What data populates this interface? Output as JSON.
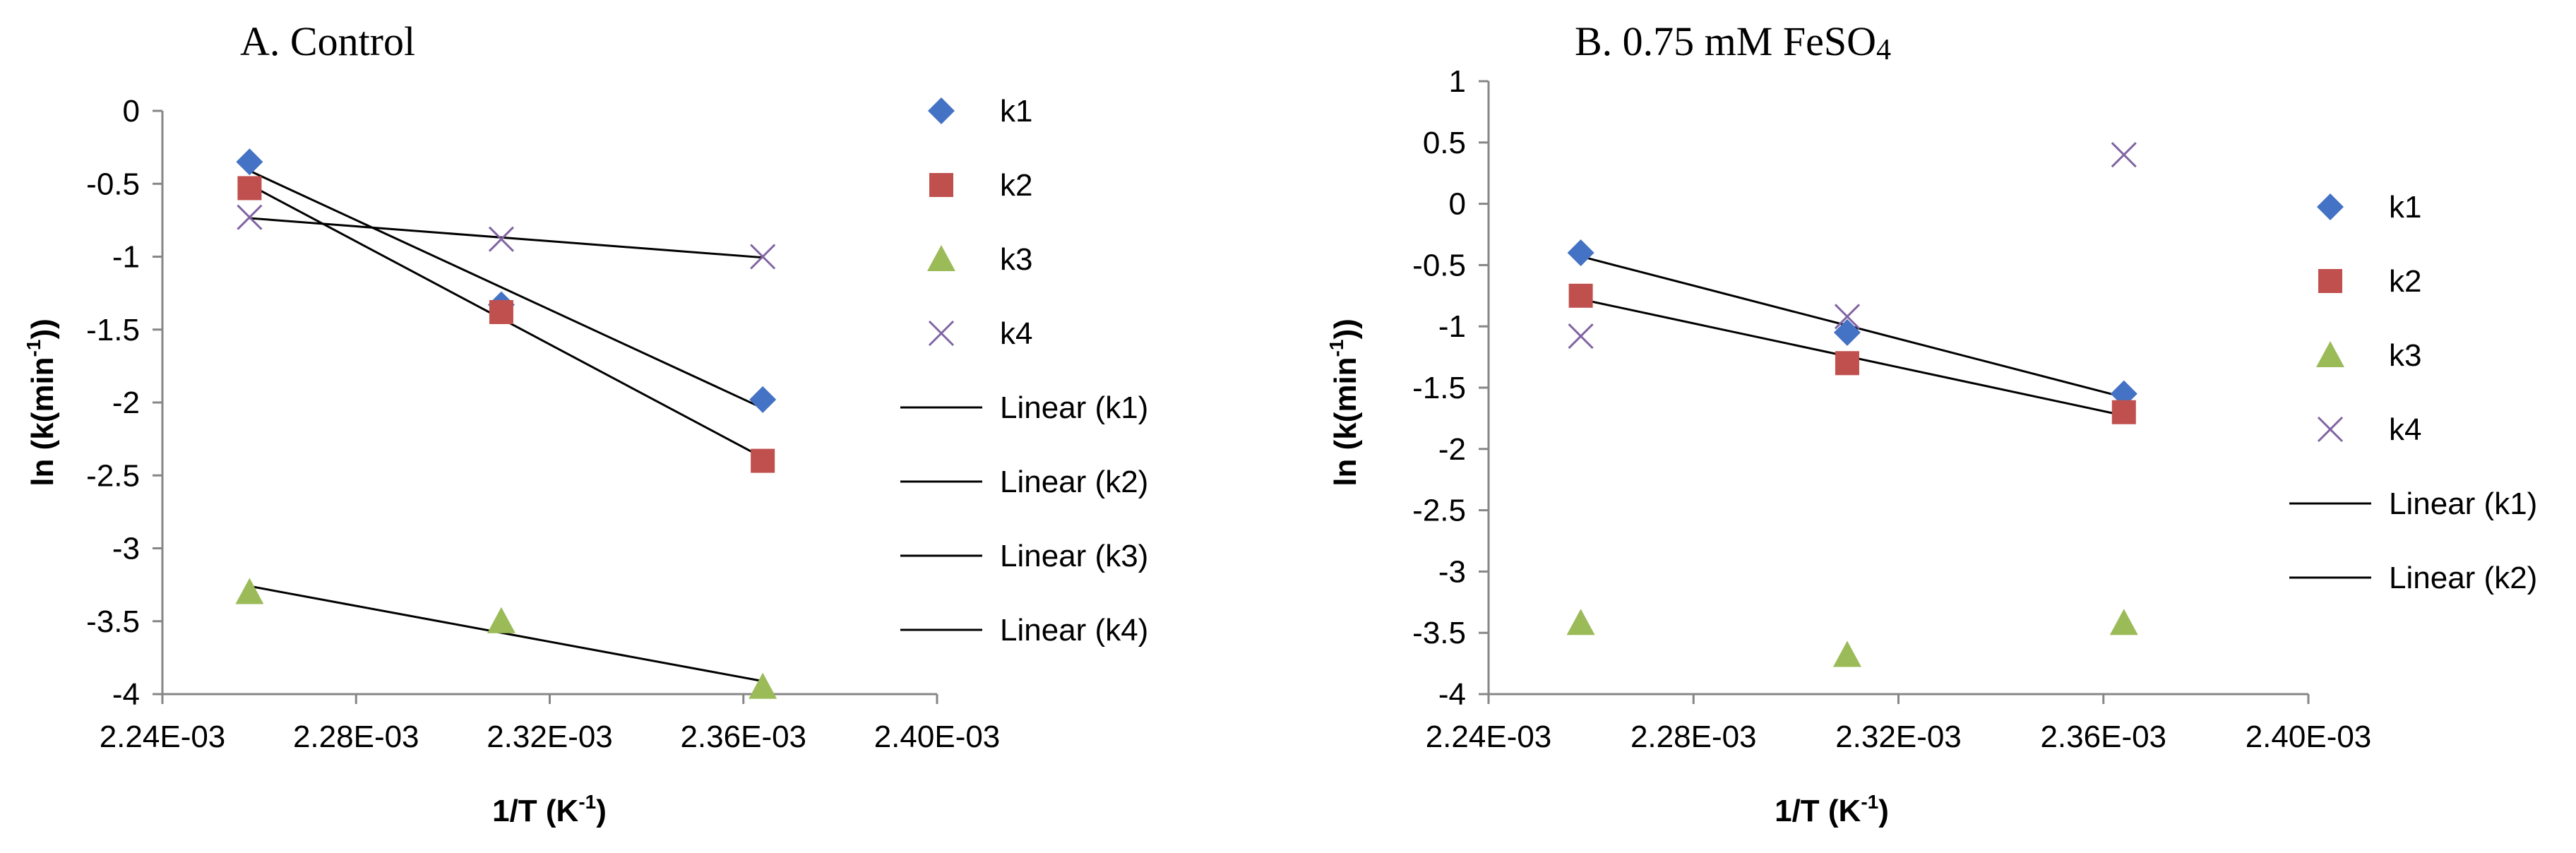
{
  "chart_data": [
    {
      "panel": "A",
      "type": "scatter",
      "title": "A.  Control",
      "xlabel": "1/T (K",
      "xlabel_sup": "-1",
      "xlabel_suffix": ")",
      "ylabel": "ln (k(min",
      "ylabel_sup": "-1",
      "ylabel_suffix": "))",
      "xlim": [
        0.00224,
        0.0024
      ],
      "ylim": [
        -4,
        0
      ],
      "x_tick_values": [
        0.00224,
        0.00228,
        0.00232,
        0.00236,
        0.0024
      ],
      "x_tick_labels": [
        "2.24E-03",
        "2.28E-03",
        "2.32E-03",
        "2.36E-03",
        "2.40E-03"
      ],
      "y_tick_values": [
        0,
        -0.5,
        -1,
        -1.5,
        -2,
        -2.5,
        -3,
        -3.5,
        -4
      ],
      "y_tick_labels": [
        "0",
        "-0.5",
        "-1",
        "-1.5",
        "-2",
        "-2.5",
        "-3",
        "-3.5",
        "-4"
      ],
      "grid": false,
      "x": [
        0.002258,
        0.00231,
        0.002364
      ],
      "series": [
        {
          "name": "k1",
          "marker": "diamond",
          "color": "#4472C4",
          "values": [
            -0.35,
            -1.33,
            -1.98
          ]
        },
        {
          "name": "k2",
          "marker": "square",
          "color": "#C0504D",
          "values": [
            -0.53,
            -1.38,
            -2.4
          ]
        },
        {
          "name": "k3",
          "marker": "triangle",
          "color": "#9BBB59",
          "values": [
            -3.3,
            -3.5,
            -3.95
          ]
        },
        {
          "name": "k4",
          "marker": "x",
          "color": "#8064A2",
          "values": [
            -0.73,
            -0.88,
            -1.0
          ]
        }
      ],
      "trendlines": [
        {
          "name": "Linear (k1)",
          "series": "k1",
          "color": "#000000"
        },
        {
          "name": "Linear (k2)",
          "series": "k2",
          "color": "#000000"
        },
        {
          "name": "Linear (k3)",
          "series": "k3",
          "color": "#000000"
        },
        {
          "name": "Linear (k4)",
          "series": "k4",
          "color": "#000000"
        }
      ],
      "legend_position": "right"
    },
    {
      "panel": "B",
      "type": "scatter",
      "title": "B.  0.75 mM FeSO",
      "title_sub": "4",
      "xlabel": "1/T (K",
      "xlabel_sup": "-1",
      "xlabel_suffix": ")",
      "ylabel": "ln (k(min",
      "ylabel_sup": "-1",
      "ylabel_suffix": "))",
      "xlim": [
        0.00224,
        0.0024
      ],
      "ylim": [
        -4,
        1
      ],
      "x_tick_values": [
        0.00224,
        0.00228,
        0.00232,
        0.00236,
        0.0024
      ],
      "x_tick_labels": [
        "2.24E-03",
        "2.28E-03",
        "2.32E-03",
        "2.36E-03",
        "2.40E-03"
      ],
      "y_tick_values": [
        1,
        0.5,
        0,
        -0.5,
        -1,
        -1.5,
        -2,
        -2.5,
        -3,
        -3.5,
        -4
      ],
      "y_tick_labels": [
        "1",
        "0.5",
        "0",
        "-0.5",
        "-1",
        "-1.5",
        "-2",
        "-2.5",
        "-3",
        "-3.5",
        "-4"
      ],
      "grid": false,
      "x": [
        0.002258,
        0.00231,
        0.002364
      ],
      "series": [
        {
          "name": "k1",
          "marker": "diamond",
          "color": "#4472C4",
          "values": [
            -0.4,
            -1.05,
            -1.55
          ]
        },
        {
          "name": "k2",
          "marker": "square",
          "color": "#C0504D",
          "values": [
            -0.75,
            -1.3,
            -1.7
          ]
        },
        {
          "name": "k3",
          "marker": "triangle",
          "color": "#9BBB59",
          "values": [
            -3.42,
            -3.68,
            -3.42
          ]
        },
        {
          "name": "k4",
          "marker": "x",
          "color": "#8064A2",
          "values": [
            -1.08,
            -0.92,
            0.4
          ]
        }
      ],
      "trendlines": [
        {
          "name": "Linear (k1)",
          "series": "k1",
          "color": "#000000"
        },
        {
          "name": "Linear (k2)",
          "series": "k2",
          "color": "#000000"
        }
      ],
      "legend_position": "right"
    }
  ]
}
